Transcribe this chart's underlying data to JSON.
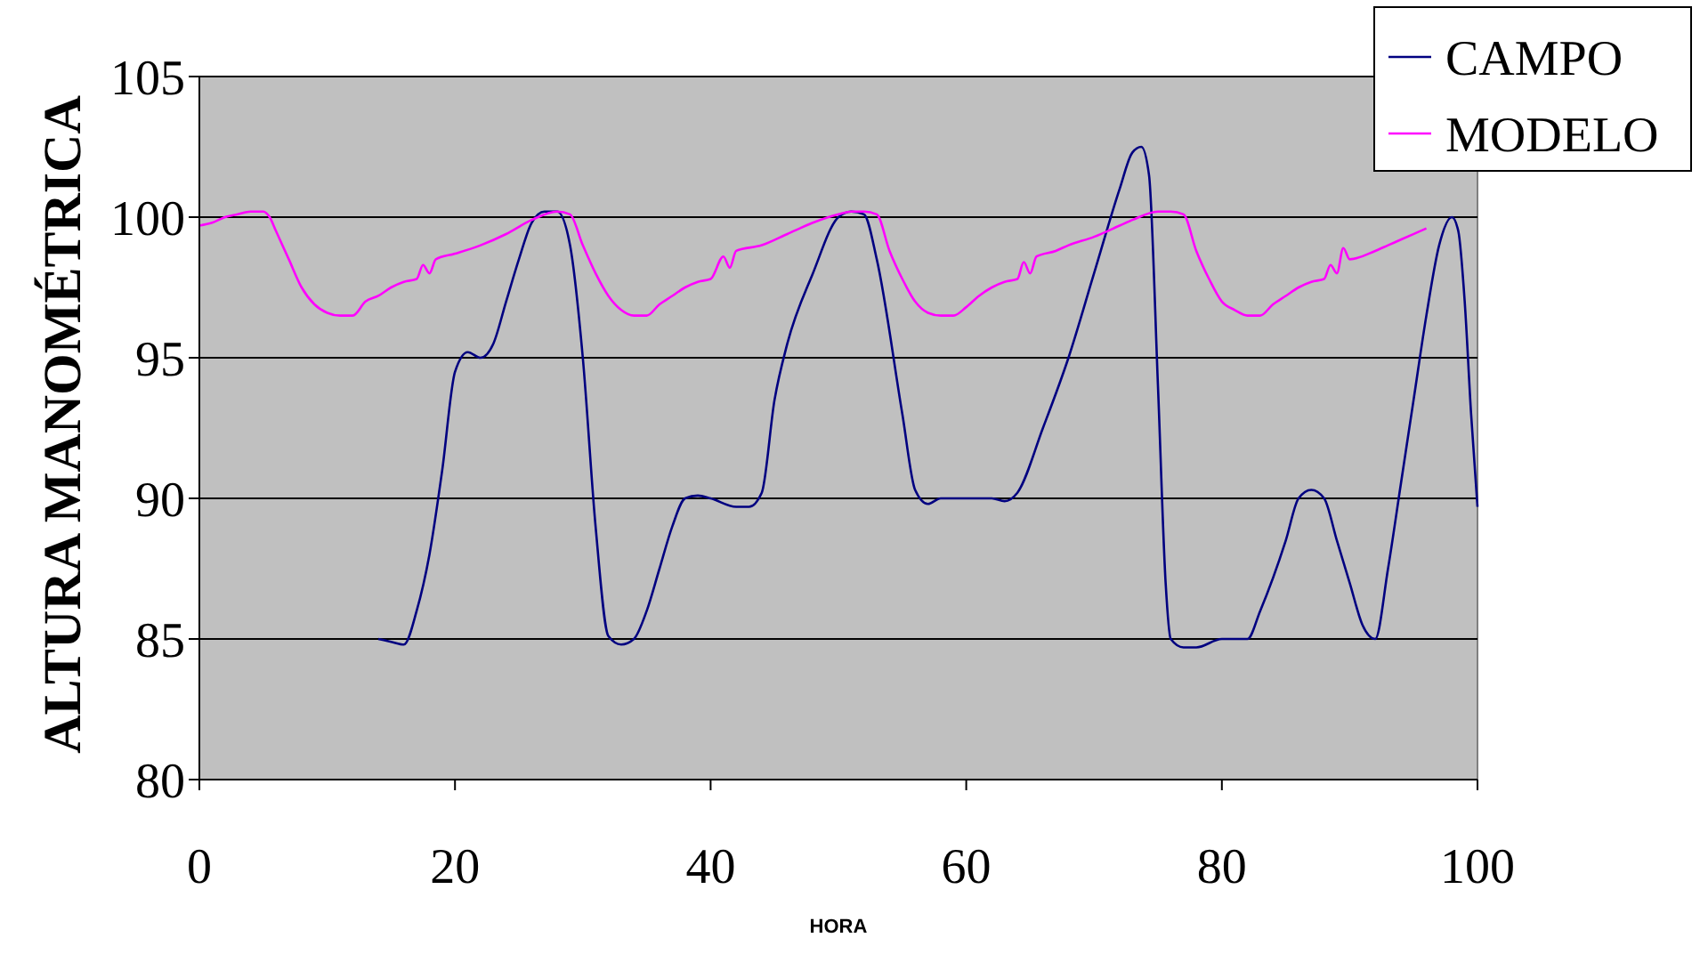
{
  "chart_data": {
    "type": "line",
    "xlabel": "HORA",
    "ylabel": "ALTURA MANOMÉTRICA",
    "xlim": [
      0,
      100
    ],
    "ylim": [
      80,
      105
    ],
    "xticks": [
      0,
      20,
      40,
      60,
      80,
      100
    ],
    "yticks": [
      80,
      85,
      90,
      95,
      100,
      105
    ],
    "grid": "y",
    "legend": "top right",
    "line_style": "solid",
    "marker": "none",
    "series": [
      {
        "name": "CAMPO",
        "color": "#000080",
        "x": [
          14,
          15,
          16,
          17,
          18,
          19,
          20,
          21,
          22,
          23,
          24,
          25,
          26,
          27,
          28,
          29,
          30,
          31,
          32,
          33,
          34,
          35,
          36,
          37,
          38,
          39,
          40,
          42,
          43,
          44,
          45,
          46,
          48,
          50,
          51,
          52,
          53,
          55,
          56,
          57,
          58,
          60,
          62,
          63,
          64,
          66,
          68,
          70,
          72,
          73,
          73.7,
          74.3,
          75,
          75.6,
          76,
          77,
          78,
          80,
          81,
          82,
          83,
          85,
          86,
          87,
          88,
          89,
          90,
          91,
          92,
          93,
          94,
          95,
          96,
          97,
          98,
          98.5,
          99,
          99.5,
          100
        ],
        "values": [
          85,
          84.9,
          84.8,
          86,
          88,
          91,
          94.5,
          95.2,
          95,
          95.5,
          97,
          98.5,
          99.8,
          100.2,
          100.2,
          99,
          95,
          89,
          85.1,
          84.8,
          85,
          86,
          87.5,
          89,
          90,
          90.1,
          90,
          89.7,
          89.7,
          90.2,
          93.5,
          95.5,
          98,
          100,
          100.2,
          100.1,
          98.5,
          93,
          90.3,
          89.8,
          90,
          90,
          90,
          89.9,
          90.2,
          92.5,
          95,
          98,
          101,
          102.3,
          102.5,
          101.5,
          94,
          87,
          85,
          84.7,
          84.7,
          85,
          85,
          85,
          86,
          88.5,
          90,
          90.3,
          90,
          88.5,
          87,
          85.5,
          85,
          87.5,
          90.5,
          93.5,
          96.5,
          99,
          100,
          99.5,
          97,
          93,
          89.7
        ]
      },
      {
        "name": "MODELO",
        "color": "#ff00ff",
        "x": [
          0,
          1,
          2,
          3,
          4,
          5,
          5.5,
          6,
          7,
          8,
          9,
          10,
          11,
          12,
          13,
          14,
          15,
          16,
          17,
          17.5,
          18,
          18.5,
          20,
          22,
          24,
          26,
          28,
          29,
          30,
          31,
          32,
          33,
          34,
          35,
          36,
          37,
          38,
          39,
          40,
          41,
          41.5,
          42,
          44,
          46,
          48,
          50,
          51,
          52,
          53,
          54,
          55,
          56,
          57,
          58,
          59,
          60,
          61,
          62,
          63,
          64,
          64.5,
          65,
          65.5,
          67,
          68,
          70,
          72,
          73,
          75,
          76,
          77,
          78,
          79,
          80,
          81,
          82,
          83,
          84,
          85,
          86,
          87,
          88,
          88.5,
          89,
          89.5,
          90,
          92,
          93,
          94,
          96
        ],
        "values": [
          99.7,
          99.8,
          100,
          100.1,
          100.2,
          100.2,
          100,
          99.5,
          98.5,
          97.5,
          96.9,
          96.6,
          96.5,
          96.5,
          97,
          97.2,
          97.5,
          97.7,
          97.8,
          98.3,
          98,
          98.5,
          98.7,
          99,
          99.4,
          99.9,
          100.2,
          100.1,
          99,
          98,
          97.2,
          96.7,
          96.5,
          96.5,
          96.9,
          97.2,
          97.5,
          97.7,
          97.8,
          98.6,
          98.2,
          98.8,
          99,
          99.4,
          99.8,
          100.1,
          100.2,
          100.2,
          100.1,
          98.8,
          97.8,
          97,
          96.6,
          96.5,
          96.5,
          96.8,
          97.2,
          97.5,
          97.7,
          97.8,
          98.4,
          98,
          98.6,
          98.8,
          99,
          99.3,
          99.7,
          99.9,
          100.2,
          100.2,
          100.1,
          98.8,
          97.8,
          97,
          96.7,
          96.5,
          96.5,
          96.9,
          97.2,
          97.5,
          97.7,
          97.8,
          98.3,
          98,
          98.9,
          98.5,
          98.8,
          99,
          99.2,
          99.6
        ]
      }
    ]
  }
}
